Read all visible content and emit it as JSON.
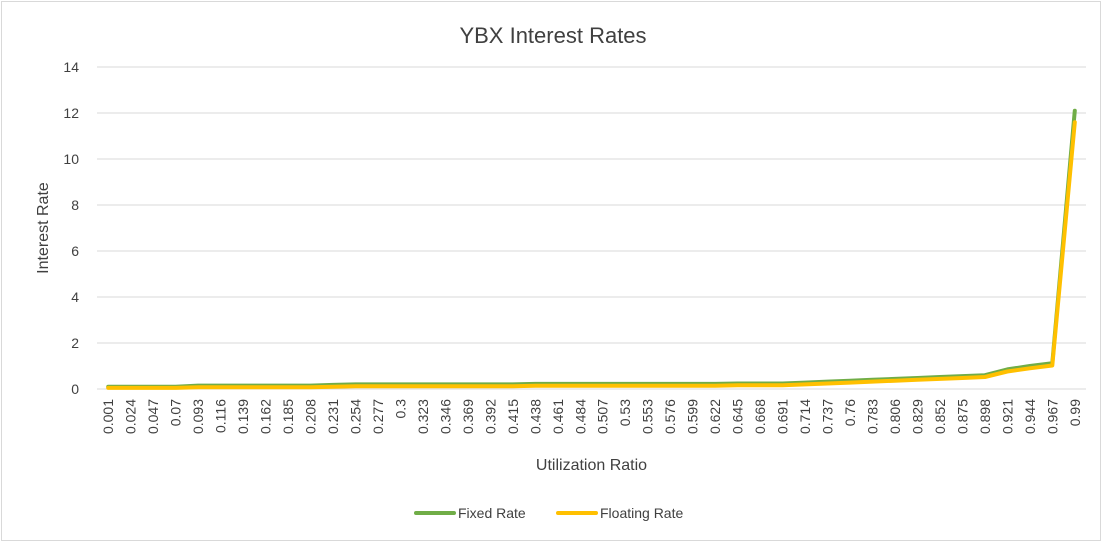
{
  "chart_data": {
    "type": "line",
    "title": "YBX Interest Rates",
    "xlabel": "Utilization Ratio",
    "ylabel": "Interest Rate",
    "ylim": [
      0,
      14
    ],
    "yticks": [
      "0",
      "2",
      "4",
      "6",
      "8",
      "10",
      "12",
      "14"
    ],
    "categories": [
      "0.001",
      "0.024",
      "0.047",
      "0.07",
      "0.093",
      "0.116",
      "0.139",
      "0.162",
      "0.185",
      "0.208",
      "0.231",
      "0.254",
      "0.277",
      "0.3",
      "0.323",
      "0.346",
      "0.369",
      "0.392",
      "0.415",
      "0.438",
      "0.461",
      "0.484",
      "0.507",
      "0.53",
      "0.553",
      "0.576",
      "0.599",
      "0.622",
      "0.645",
      "0.668",
      "0.691",
      "0.714",
      "0.737",
      "0.76",
      "0.783",
      "0.806",
      "0.829",
      "0.852",
      "0.875",
      "0.898",
      "0.921",
      "0.944",
      "0.967",
      "0.99"
    ],
    "grid": true,
    "legend_position": "bottom",
    "series": [
      {
        "name": "Fixed Rate",
        "color": "#70ad47",
        "values": [
          0.1,
          0.1,
          0.1,
          0.1,
          0.15,
          0.15,
          0.15,
          0.15,
          0.15,
          0.15,
          0.18,
          0.2,
          0.2,
          0.2,
          0.2,
          0.2,
          0.2,
          0.2,
          0.2,
          0.22,
          0.22,
          0.22,
          0.22,
          0.22,
          0.22,
          0.22,
          0.22,
          0.22,
          0.24,
          0.24,
          0.24,
          0.28,
          0.32,
          0.36,
          0.4,
          0.44,
          0.48,
          0.52,
          0.56,
          0.6,
          0.85,
          1.0,
          1.12,
          12.1
        ]
      },
      {
        "name": "Floating Rate",
        "color": "#ffc000",
        "values": [
          0.05,
          0.05,
          0.05,
          0.05,
          0.08,
          0.08,
          0.08,
          0.08,
          0.08,
          0.08,
          0.1,
          0.12,
          0.12,
          0.12,
          0.12,
          0.12,
          0.12,
          0.12,
          0.12,
          0.14,
          0.14,
          0.14,
          0.14,
          0.14,
          0.14,
          0.14,
          0.14,
          0.14,
          0.16,
          0.16,
          0.16,
          0.2,
          0.24,
          0.28,
          0.32,
          0.36,
          0.4,
          0.44,
          0.48,
          0.52,
          0.76,
          0.9,
          1.02,
          11.6
        ]
      }
    ]
  }
}
